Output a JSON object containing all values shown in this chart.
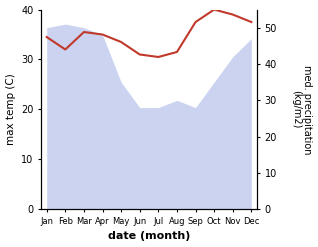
{
  "months": [
    "Jan",
    "Feb",
    "Mar",
    "Apr",
    "May",
    "Jun",
    "Jul",
    "Aug",
    "Sep",
    "Oct",
    "Nov",
    "Dec"
  ],
  "x": [
    0,
    1,
    2,
    3,
    4,
    5,
    6,
    7,
    8,
    9,
    10,
    11
  ],
  "temp": [
    34.5,
    32.0,
    35.5,
    35.0,
    33.5,
    31.0,
    30.5,
    31.5,
    37.5,
    40.0,
    39.0,
    37.5
  ],
  "rain_kg": [
    50,
    51,
    50,
    48,
    35,
    28,
    28,
    30,
    28,
    35,
    42,
    47
  ],
  "ylim_left": [
    0,
    40
  ],
  "ylim_right": [
    0,
    55
  ],
  "fill_color": "#b0bce8",
  "fill_alpha": 0.65,
  "line_color": "#c0392b",
  "line_width": 1.5,
  "xlabel": "date (month)",
  "ylabel_left": "max temp (C)",
  "ylabel_right": "med. precipitation\n(kg/m2)"
}
